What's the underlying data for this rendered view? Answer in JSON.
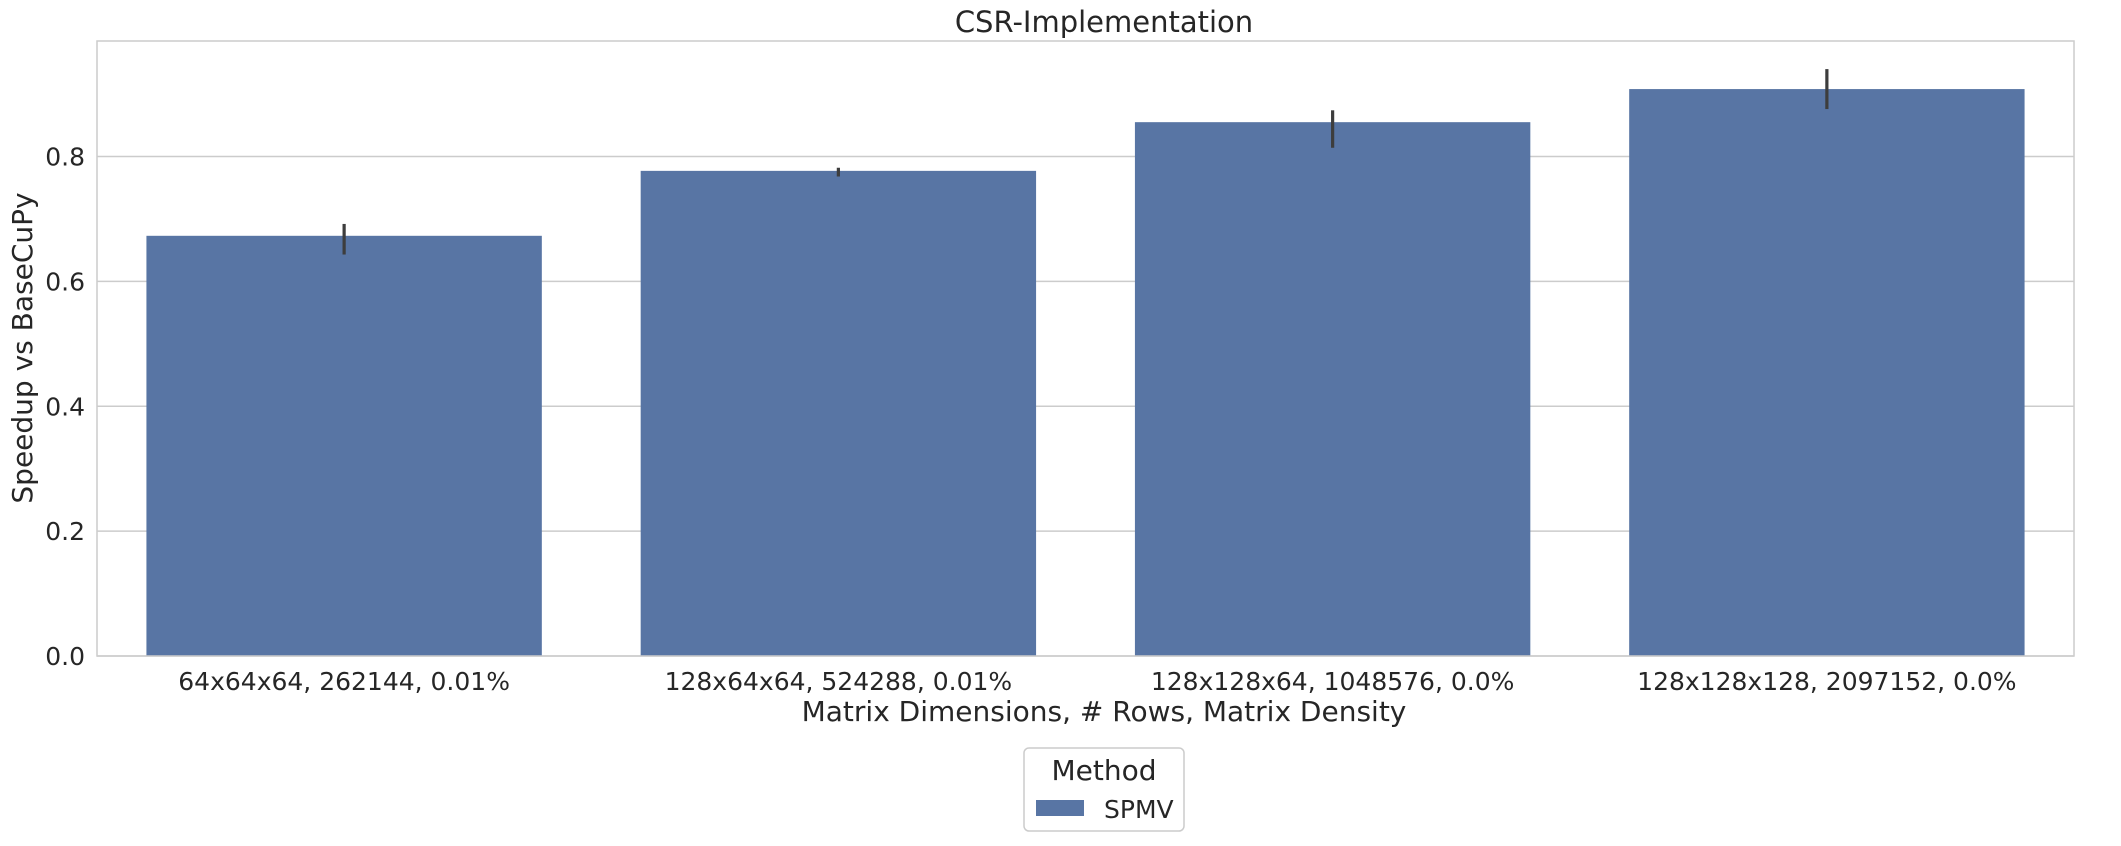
{
  "chart_data": {
    "type": "bar",
    "title": "CSR-Implementation",
    "xlabel": "Matrix Dimensions, # Rows, Matrix Density",
    "ylabel": "Speedup vs BaseCuPy",
    "categories": [
      "64x64x64, 262144, 0.01%",
      "128x64x64, 524288, 0.01%",
      "128x128x64, 1048576, 0.0%",
      "128x128x128, 2097152, 0.0%"
    ],
    "series": [
      {
        "name": "SPMV",
        "values": [
          0.673,
          0.777,
          0.855,
          0.908
        ],
        "error_low": [
          0.643,
          0.768,
          0.814,
          0.876
        ],
        "error_high": [
          0.692,
          0.782,
          0.874,
          0.94
        ],
        "color": "#5875a4"
      }
    ],
    "ylim": [
      0,
      0.985
    ],
    "yticks": [
      0.0,
      0.2,
      0.4,
      0.6,
      0.8
    ],
    "ytick_labels": [
      "0.0",
      "0.2",
      "0.4",
      "0.6",
      "0.8"
    ],
    "grid": "horizontal",
    "legend": {
      "title": "Method",
      "placement": "bottom-center"
    }
  }
}
